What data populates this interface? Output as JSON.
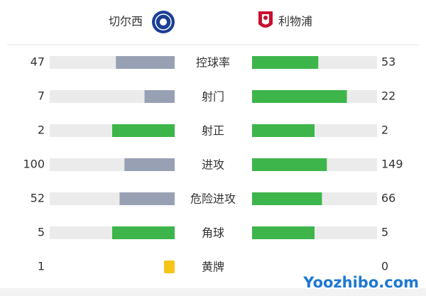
{
  "home": {
    "name": "切尔西"
  },
  "away": {
    "name": "利物浦"
  },
  "stats": [
    {
      "label": "控球率",
      "home": 47,
      "away": 53
    },
    {
      "label": "射门",
      "home": 7,
      "away": 22
    },
    {
      "label": "射正",
      "home": 2,
      "away": 2
    },
    {
      "label": "进攻",
      "home": 100,
      "away": 149
    },
    {
      "label": "危险进攻",
      "home": 52,
      "away": 66
    },
    {
      "label": "角球",
      "home": 5,
      "away": 5
    },
    {
      "label": "黄牌",
      "home": 1,
      "away": 0,
      "icon_color": "#f5c518"
    }
  ],
  "colors": {
    "leading": "#3db54a",
    "trailing": "#98a0b3",
    "track": "#ebebeb"
  },
  "watermark": "Yoozhibo.com"
}
